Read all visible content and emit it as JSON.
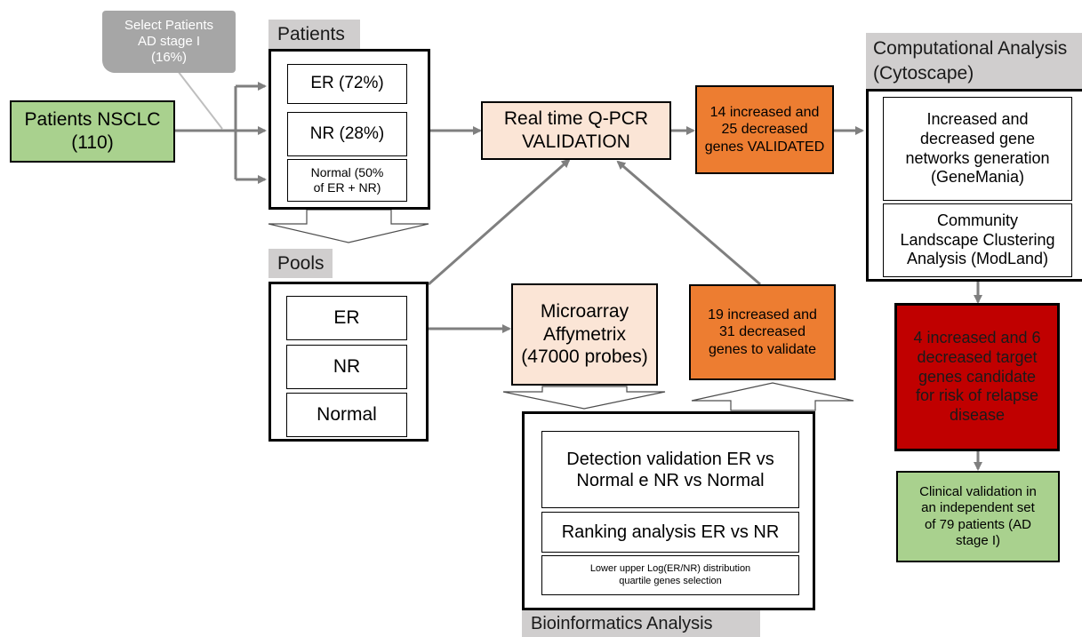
{
  "colors": {
    "arrow": "#7f7f7f",
    "green": "#a9d18e",
    "peach": "#fbe5d6",
    "orange": "#ed7d31",
    "dark_red": "#c00000",
    "label_gray": "#d0cece",
    "callout_gray": "#a6a6a6"
  },
  "callout": {
    "text": "Select Patients\nAD stage I\n(16%)"
  },
  "start": {
    "text": "Patients NSCLC\n(110)"
  },
  "patients": {
    "label": "Patients",
    "items": [
      "ER (72%)",
      "NR (28%)",
      "Normal (50%\nof ER + NR)"
    ]
  },
  "pools": {
    "label": "Pools",
    "items": [
      "ER",
      "NR",
      "Normal"
    ]
  },
  "qpcr": {
    "text": "Real time Q-PCR\nVALIDATION"
  },
  "validated": {
    "text": "14 increased and\n25 decreased\ngenes VALIDATED"
  },
  "microarray": {
    "text": "Microarray\nAffymetrix\n(47000 probes)"
  },
  "to_validate": {
    "text": "19 increased and\n31 decreased\ngenes to validate"
  },
  "bioinformatics": {
    "label": "Bioinformatics Analysis",
    "items": [
      "Detection validation ER vs\nNormal e NR vs Normal",
      "Ranking analysis ER vs NR",
      "Lower upper Log(ER/NR) distribution\nquartile genes selection"
    ]
  },
  "computational": {
    "label": "Computational Analysis\n(Cytoscape)",
    "items": [
      "Increased and\ndecreased gene\nnetworks generation\n(GeneMania)",
      "Community\nLandscape Clustering\nAnalysis (ModLand)"
    ]
  },
  "candidates": {
    "text": "4 increased and 6\ndecreased target\ngenes candidate\nfor risk of relapse\ndisease"
  },
  "clinical": {
    "text": "Clinical validation in\nan independent set\nof 79  patients (AD\nstage I)"
  }
}
